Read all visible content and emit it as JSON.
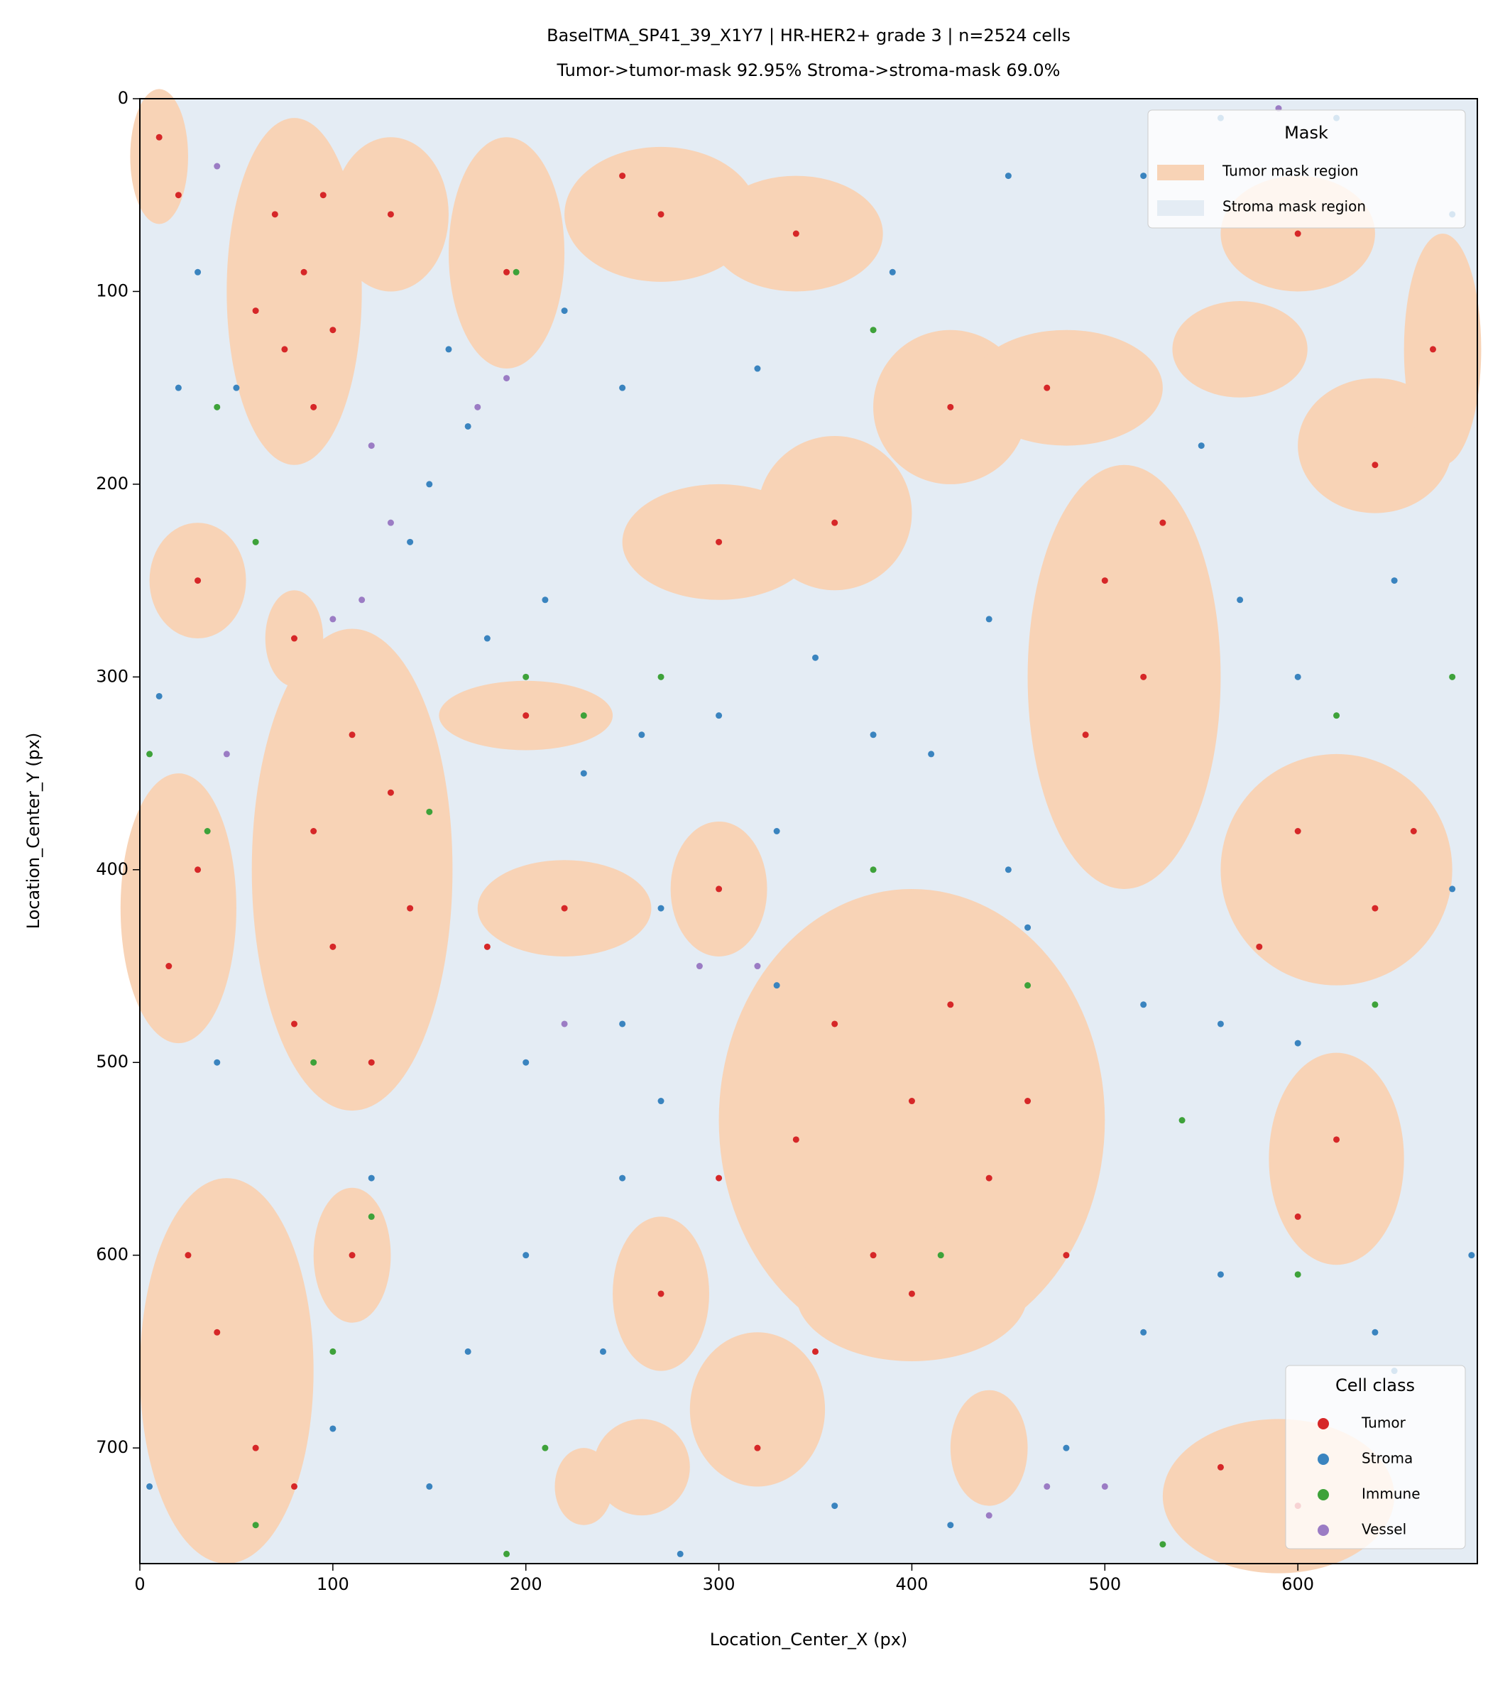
{
  "chart_data": {
    "type": "scatter",
    "title": "BaselTMA_SP41_39_X1Y7  |  HR-HER2+  grade 3  |  n=2524 cells",
    "subtitle": "Tumor->tumor-mask 92.95%   Stroma->stroma-mask 69.0%",
    "x_label": "Location_Center_X (px)",
    "y_label": "Location_Center_Y (px)",
    "xlim": [
      0,
      693
    ],
    "ylim": [
      760,
      0
    ],
    "xticks": [
      0,
      100,
      200,
      300,
      400,
      500,
      600
    ],
    "yticks": [
      0,
      100,
      200,
      300,
      400,
      500,
      600,
      700
    ],
    "mask_legend": {
      "title": "Mask",
      "loc": "upper right",
      "entries": [
        {
          "name": "Tumor mask region",
          "color": "#f8d3b6"
        },
        {
          "name": "Stroma mask region",
          "color": "#e4ecf4"
        }
      ]
    },
    "legend": {
      "title": "Cell class",
      "loc": "lower right"
    },
    "series": [
      {
        "name": "Tumor",
        "color": "#d62728",
        "x": [
          70,
          85,
          75,
          90,
          60,
          100,
          95,
          10,
          20,
          110,
          90,
          130,
          100,
          80,
          140,
          120,
          180,
          200,
          30,
          15,
          40,
          60,
          25,
          80,
          360,
          400,
          440,
          380,
          340,
          420,
          460,
          480,
          300,
          350,
          320,
          500,
          520,
          490,
          530,
          600,
          640,
          580,
          660,
          620,
          600,
          600,
          560,
          270,
          250,
          340,
          420,
          470,
          640,
          670,
          600,
          300,
          360,
          220,
          300,
          30,
          80,
          190,
          130,
          400,
          270,
          110
        ],
        "y": [
          60,
          90,
          130,
          160,
          110,
          120,
          50,
          20,
          50,
          330,
          380,
          360,
          440,
          480,
          420,
          500,
          440,
          320,
          400,
          450,
          640,
          700,
          600,
          720,
          480,
          520,
          560,
          600,
          540,
          470,
          520,
          600,
          560,
          650,
          700,
          250,
          300,
          330,
          220,
          380,
          420,
          440,
          380,
          540,
          580,
          730,
          710,
          60,
          40,
          70,
          160,
          150,
          190,
          130,
          70,
          230,
          220,
          420,
          410,
          250,
          280,
          90,
          60,
          620,
          620,
          600
        ]
      },
      {
        "name": "Stroma",
        "color": "#3a84bf",
        "x": [
          20,
          150,
          180,
          230,
          260,
          250,
          200,
          170,
          240,
          330,
          270,
          450,
          520,
          560,
          600,
          650,
          680,
          650,
          480,
          420,
          360,
          150,
          120,
          40,
          10,
          50,
          170,
          220,
          320,
          390,
          450,
          520,
          560,
          620,
          680,
          550,
          570,
          460,
          380,
          300,
          270,
          210,
          140,
          200,
          250,
          520,
          560,
          640,
          600,
          690,
          100,
          5,
          30,
          250,
          410,
          350,
          160,
          440,
          330,
          280
        ],
        "y": [
          150,
          200,
          280,
          350,
          330,
          480,
          600,
          650,
          650,
          380,
          520,
          400,
          470,
          480,
          300,
          250,
          410,
          660,
          700,
          740,
          730,
          720,
          560,
          500,
          310,
          150,
          170,
          110,
          140,
          90,
          40,
          40,
          10,
          10,
          60,
          180,
          260,
          430,
          330,
          320,
          420,
          260,
          230,
          500,
          560,
          640,
          610,
          640,
          490,
          600,
          690,
          720,
          90,
          150,
          340,
          290,
          130,
          270,
          460,
          755
        ]
      },
      {
        "name": "Immune",
        "color": "#3ea23a",
        "x": [
          5,
          35,
          60,
          40,
          200,
          230,
          150,
          195,
          190,
          90,
          120,
          270,
          380,
          415,
          460,
          540,
          680,
          640,
          600,
          620,
          210,
          60,
          100,
          530,
          380
        ],
        "y": [
          340,
          380,
          230,
          160,
          300,
          320,
          370,
          90,
          755,
          500,
          580,
          300,
          120,
          600,
          460,
          530,
          300,
          470,
          610,
          320,
          700,
          740,
          650,
          750,
          400
        ]
      },
      {
        "name": "Vessel",
        "color": "#9b7cc4",
        "x": [
          120,
          130,
          115,
          100,
          190,
          175,
          45,
          40,
          290,
          320,
          220,
          590,
          470,
          440,
          500
        ],
        "y": [
          180,
          220,
          260,
          270,
          145,
          160,
          340,
          35,
          450,
          450,
          480,
          5,
          720,
          735,
          720
        ]
      }
    ]
  }
}
